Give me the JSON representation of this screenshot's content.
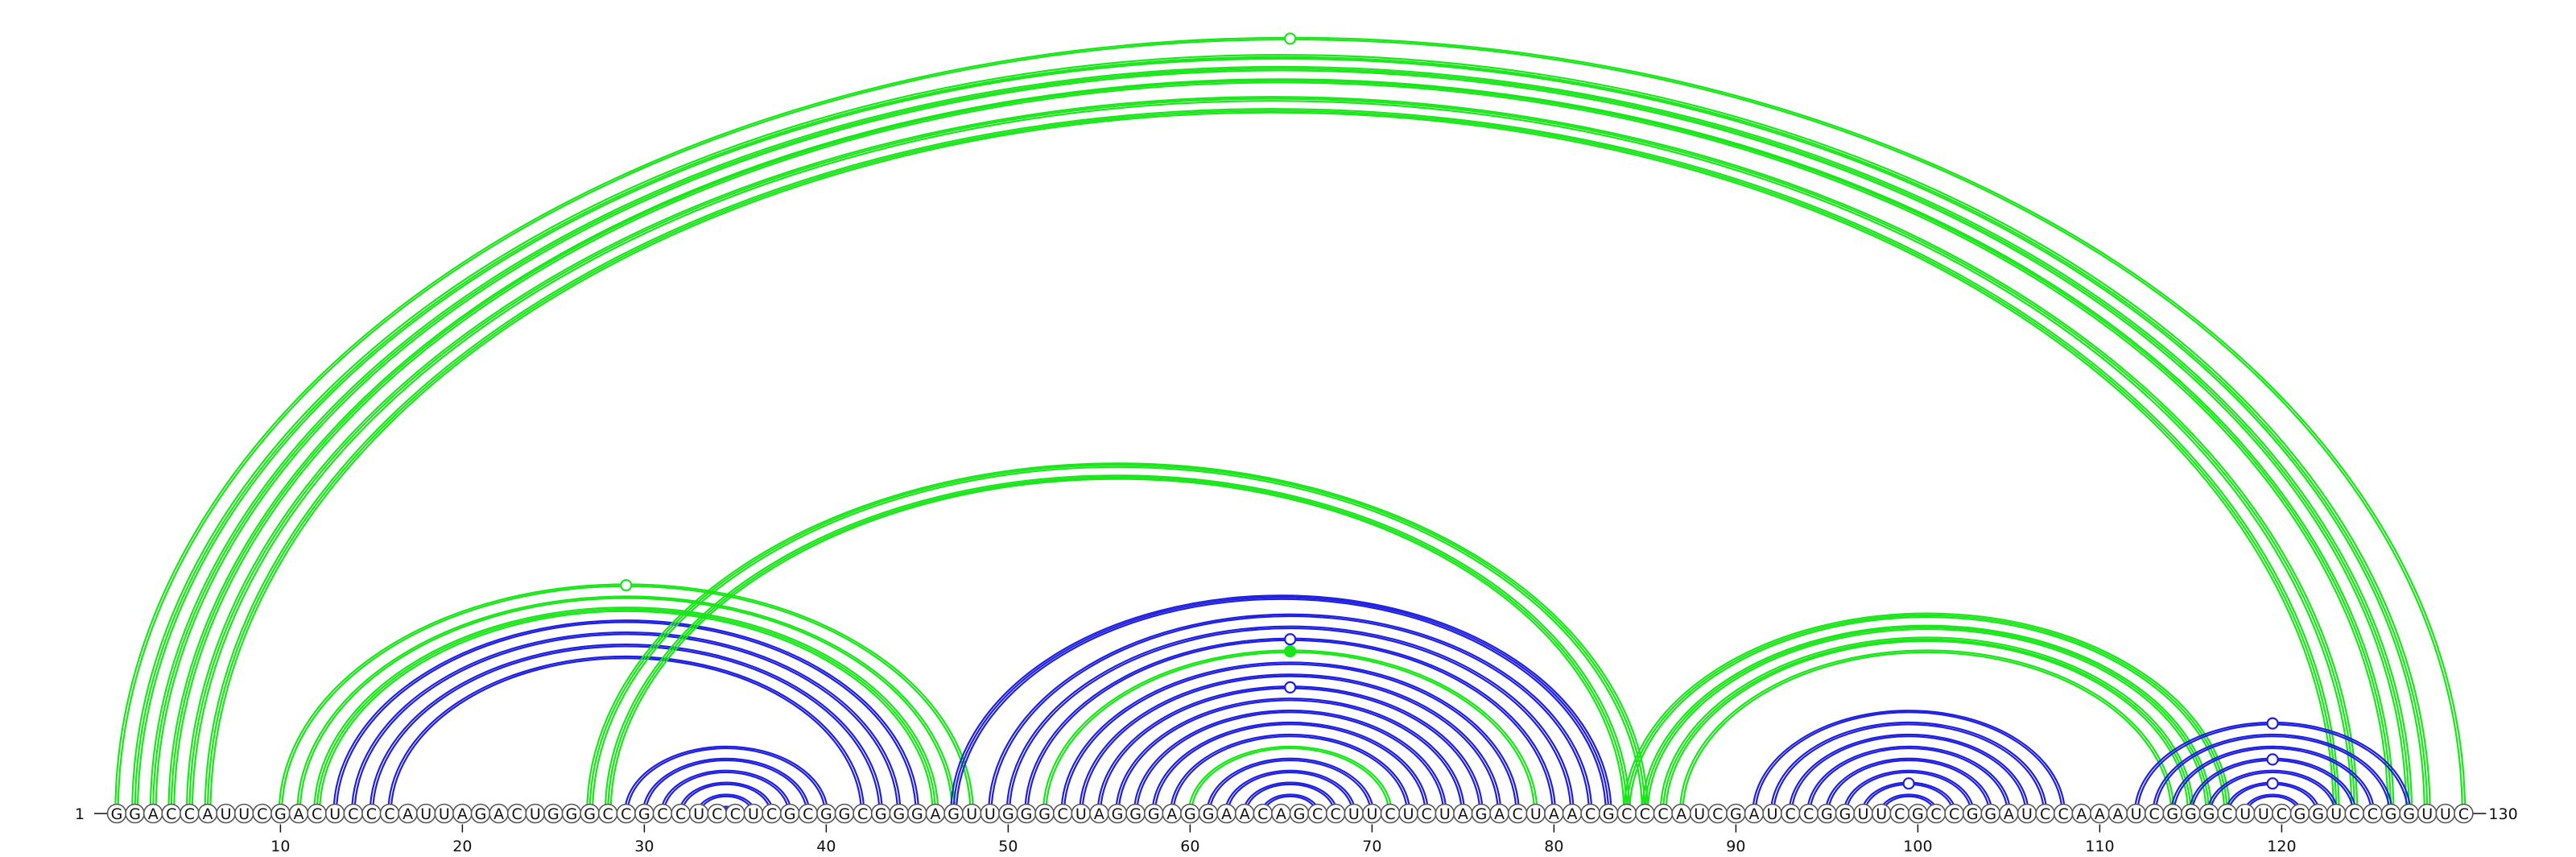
{
  "sequence": "GGACCAUUCGACUCCCAUUAGACUGGGCCGCCUCCUCGCGGCGGGAGUUGGGCUAGGGAGGAACAGCCUUCUCUAGACUAACGCCCAUCGAUCCGGUUCGCCGGAUCCAAAUCGGGCUUCGGUCCGGUUC",
  "start_label": "1",
  "end_label": "130",
  "tick_labels": [
    "10",
    "20",
    "30",
    "40",
    "50",
    "60",
    "70",
    "80",
    "90",
    "100",
    "110",
    "120"
  ],
  "colors": {
    "blue": "#1f1fe0",
    "green": "#19e619"
  },
  "pairs": [
    {
      "i": 1,
      "j": 130,
      "c": "green",
      "w": 2
    },
    {
      "i": 2,
      "j": 128,
      "c": "green",
      "w": 3
    },
    {
      "i": 3,
      "j": 127,
      "c": "green",
      "w": 3
    },
    {
      "i": 4,
      "j": 126,
      "c": "green",
      "w": 3
    },
    {
      "i": 5,
      "j": 124,
      "c": "green",
      "w": 3
    },
    {
      "i": 6,
      "j": 123,
      "c": "green",
      "w": 3
    },
    {
      "i": 10,
      "j": 48,
      "c": "green",
      "w": 2
    },
    {
      "i": 11,
      "j": 47,
      "c": "green",
      "w": 2
    },
    {
      "i": 12,
      "j": 46,
      "c": "green",
      "w": 3
    },
    {
      "i": 13,
      "j": 45,
      "c": "blue",
      "w": 2
    },
    {
      "i": 14,
      "j": 44,
      "c": "blue",
      "w": 2
    },
    {
      "i": 15,
      "j": 43,
      "c": "blue",
      "w": 2
    },
    {
      "i": 16,
      "j": 42,
      "c": "blue",
      "w": 2
    },
    {
      "i": 27,
      "j": 85,
      "c": "green",
      "w": 3
    },
    {
      "i": 28,
      "j": 84,
      "c": "green",
      "w": 3
    },
    {
      "i": 29,
      "j": 40,
      "c": "blue",
      "w": 2
    },
    {
      "i": 30,
      "j": 39,
      "c": "blue",
      "w": 2
    },
    {
      "i": 31,
      "j": 38,
      "c": "blue",
      "w": 2
    },
    {
      "i": 32,
      "j": 37,
      "c": "blue",
      "w": 2
    },
    {
      "i": 33,
      "j": 36,
      "c": "blue",
      "w": 2
    },
    {
      "i": 34,
      "j": 35,
      "c": "blue",
      "w": 2
    },
    {
      "i": 47,
      "j": 83,
      "c": "blue",
      "w": 3
    },
    {
      "i": 49,
      "j": 82,
      "c": "blue",
      "w": 2
    },
    {
      "i": 50,
      "j": 81,
      "c": "blue",
      "w": 2
    },
    {
      "i": 51,
      "j": 80,
      "c": "blue",
      "w": 2
    },
    {
      "i": 52,
      "j": 79,
      "c": "green",
      "w": 2
    },
    {
      "i": 53,
      "j": 78,
      "c": "blue",
      "w": 2
    },
    {
      "i": 54,
      "j": 77,
      "c": "blue",
      "w": 2
    },
    {
      "i": 55,
      "j": 76,
      "c": "blue",
      "w": 2
    },
    {
      "i": 56,
      "j": 75,
      "c": "blue",
      "w": 2
    },
    {
      "i": 57,
      "j": 74,
      "c": "blue",
      "w": 2
    },
    {
      "i": 58,
      "j": 73,
      "c": "blue",
      "w": 2
    },
    {
      "i": 59,
      "j": 72,
      "c": "blue",
      "w": 2
    },
    {
      "i": 60,
      "j": 71,
      "c": "green",
      "w": 2
    },
    {
      "i": 61,
      "j": 70,
      "c": "blue",
      "w": 2
    },
    {
      "i": 62,
      "j": 69,
      "c": "blue",
      "w": 2
    },
    {
      "i": 63,
      "j": 68,
      "c": "blue",
      "w": 2
    },
    {
      "i": 64,
      "j": 67,
      "c": "blue",
      "w": 2
    },
    {
      "i": 84,
      "j": 117,
      "c": "green",
      "w": 3
    },
    {
      "i": 85,
      "j": 116,
      "c": "green",
      "w": 3
    },
    {
      "i": 86,
      "j": 115,
      "c": "green",
      "w": 3
    },
    {
      "i": 87,
      "j": 114,
      "c": "green",
      "w": 2
    },
    {
      "i": 91,
      "j": 108,
      "c": "blue",
      "w": 2
    },
    {
      "i": 92,
      "j": 107,
      "c": "blue",
      "w": 2
    },
    {
      "i": 93,
      "j": 106,
      "c": "blue",
      "w": 2
    },
    {
      "i": 94,
      "j": 105,
      "c": "blue",
      "w": 2
    },
    {
      "i": 95,
      "j": 104,
      "c": "blue",
      "w": 2
    },
    {
      "i": 96,
      "j": 103,
      "c": "blue",
      "w": 2
    },
    {
      "i": 97,
      "j": 102,
      "c": "blue",
      "w": 2
    },
    {
      "i": 98,
      "j": 101,
      "c": "blue",
      "w": 2
    },
    {
      "i": 112,
      "j": 127,
      "c": "blue",
      "w": 2
    },
    {
      "i": 113,
      "j": 126,
      "c": "blue",
      "w": 2
    },
    {
      "i": 114,
      "j": 125,
      "c": "blue",
      "w": 2
    },
    {
      "i": 115,
      "j": 124,
      "c": "blue",
      "w": 2
    },
    {
      "i": 116,
      "j": 123,
      "c": "blue",
      "w": 2
    },
    {
      "i": 117,
      "j": 122,
      "c": "blue",
      "w": 2
    },
    {
      "i": 118,
      "j": 121,
      "c": "blue",
      "w": 2
    }
  ],
  "markers": [
    {
      "i": 1,
      "j": 130,
      "c": "green",
      "filled": false
    },
    {
      "i": 10,
      "j": 48,
      "c": "green",
      "filled": false
    },
    {
      "i": 51,
      "j": 80,
      "c": "blue",
      "filled": false
    },
    {
      "i": 52,
      "j": 79,
      "c": "green",
      "filled": true
    },
    {
      "i": 55,
      "j": 76,
      "c": "blue",
      "filled": false
    },
    {
      "i": 97,
      "j": 102,
      "c": "blue",
      "filled": false
    },
    {
      "i": 112,
      "j": 127,
      "c": "blue",
      "filled": false
    },
    {
      "i": 115,
      "j": 124,
      "c": "blue",
      "filled": false
    },
    {
      "i": 117,
      "j": 122,
      "c": "blue",
      "filled": false
    }
  ]
}
